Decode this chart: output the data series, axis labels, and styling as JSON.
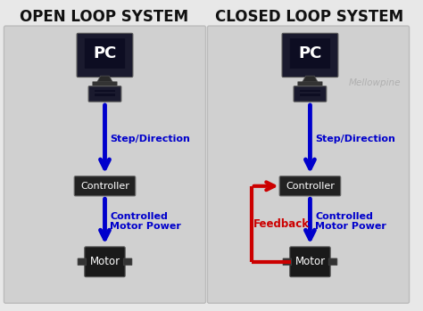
{
  "bg_color": "#e8e8e8",
  "panel_bg": "#d0d0d0",
  "panel_border": "#bbbbbb",
  "box_color": "#222222",
  "box_border": "#666666",
  "blue_arrow": "#0000cc",
  "red_arrow": "#cc0000",
  "white_text": "#ffffff",
  "blue_text": "#0000cc",
  "red_text": "#cc0000",
  "black_text": "#111111",
  "gray_text": "#b0b0b0",
  "left_title": "OPEN LOOP SYSTEM",
  "right_title": "CLOSED LOOP SYSTEM",
  "watermark": "Mellowpine",
  "step_label": "Step/Direction",
  "power_label": "Controlled\nMotor Power",
  "feedback_label": "Feedback",
  "pc_label": "PC",
  "controller_label": "Controller",
  "motor_label": "Motor"
}
